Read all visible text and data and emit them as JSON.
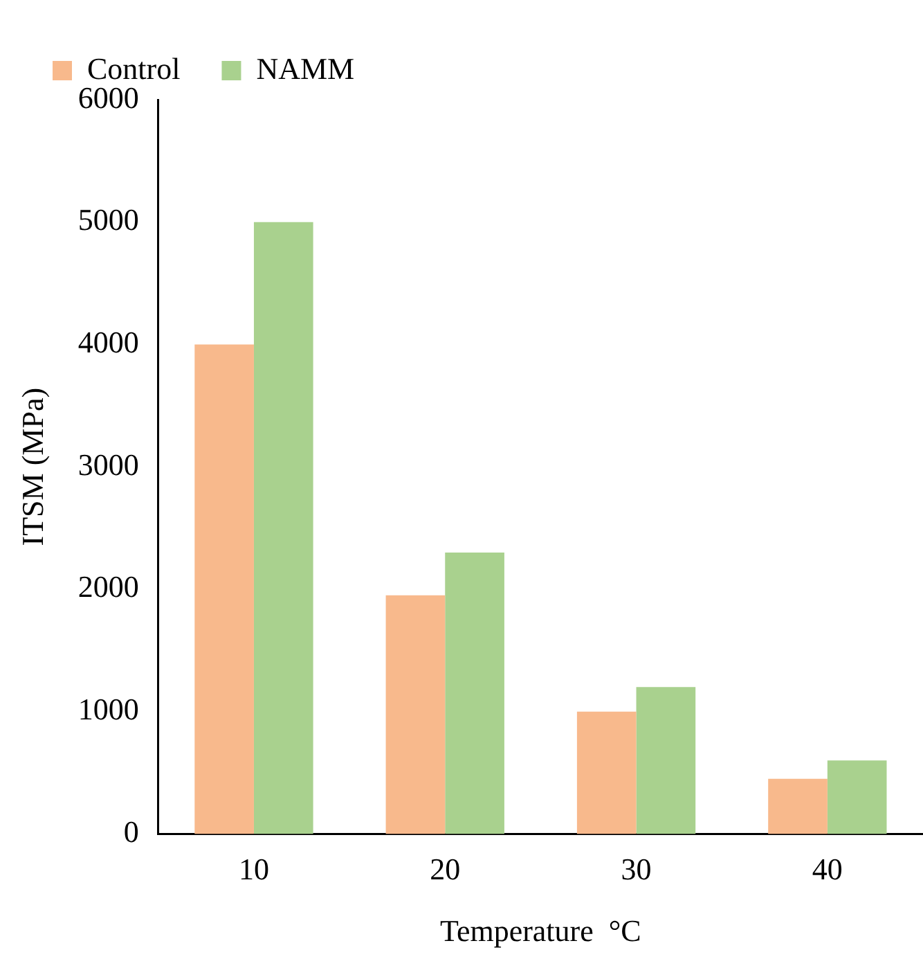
{
  "chart_data": {
    "type": "bar",
    "xlabel": "Temperature  °C",
    "ylabel": "ITSM (MPa)",
    "categories": [
      "10",
      "20",
      "30",
      "40"
    ],
    "series": [
      {
        "name": "Control",
        "color": "#f8b98c",
        "values": [
          4000,
          1950,
          1000,
          450
        ]
      },
      {
        "name": "NAMM",
        "color": "#a9d18e",
        "values": [
          5000,
          2300,
          1200,
          600
        ]
      }
    ],
    "ylim": [
      0,
      6000
    ],
    "yticks": [
      0,
      1000,
      2000,
      3000,
      4000,
      5000,
      6000
    ],
    "grid": false,
    "legend": "top left"
  }
}
